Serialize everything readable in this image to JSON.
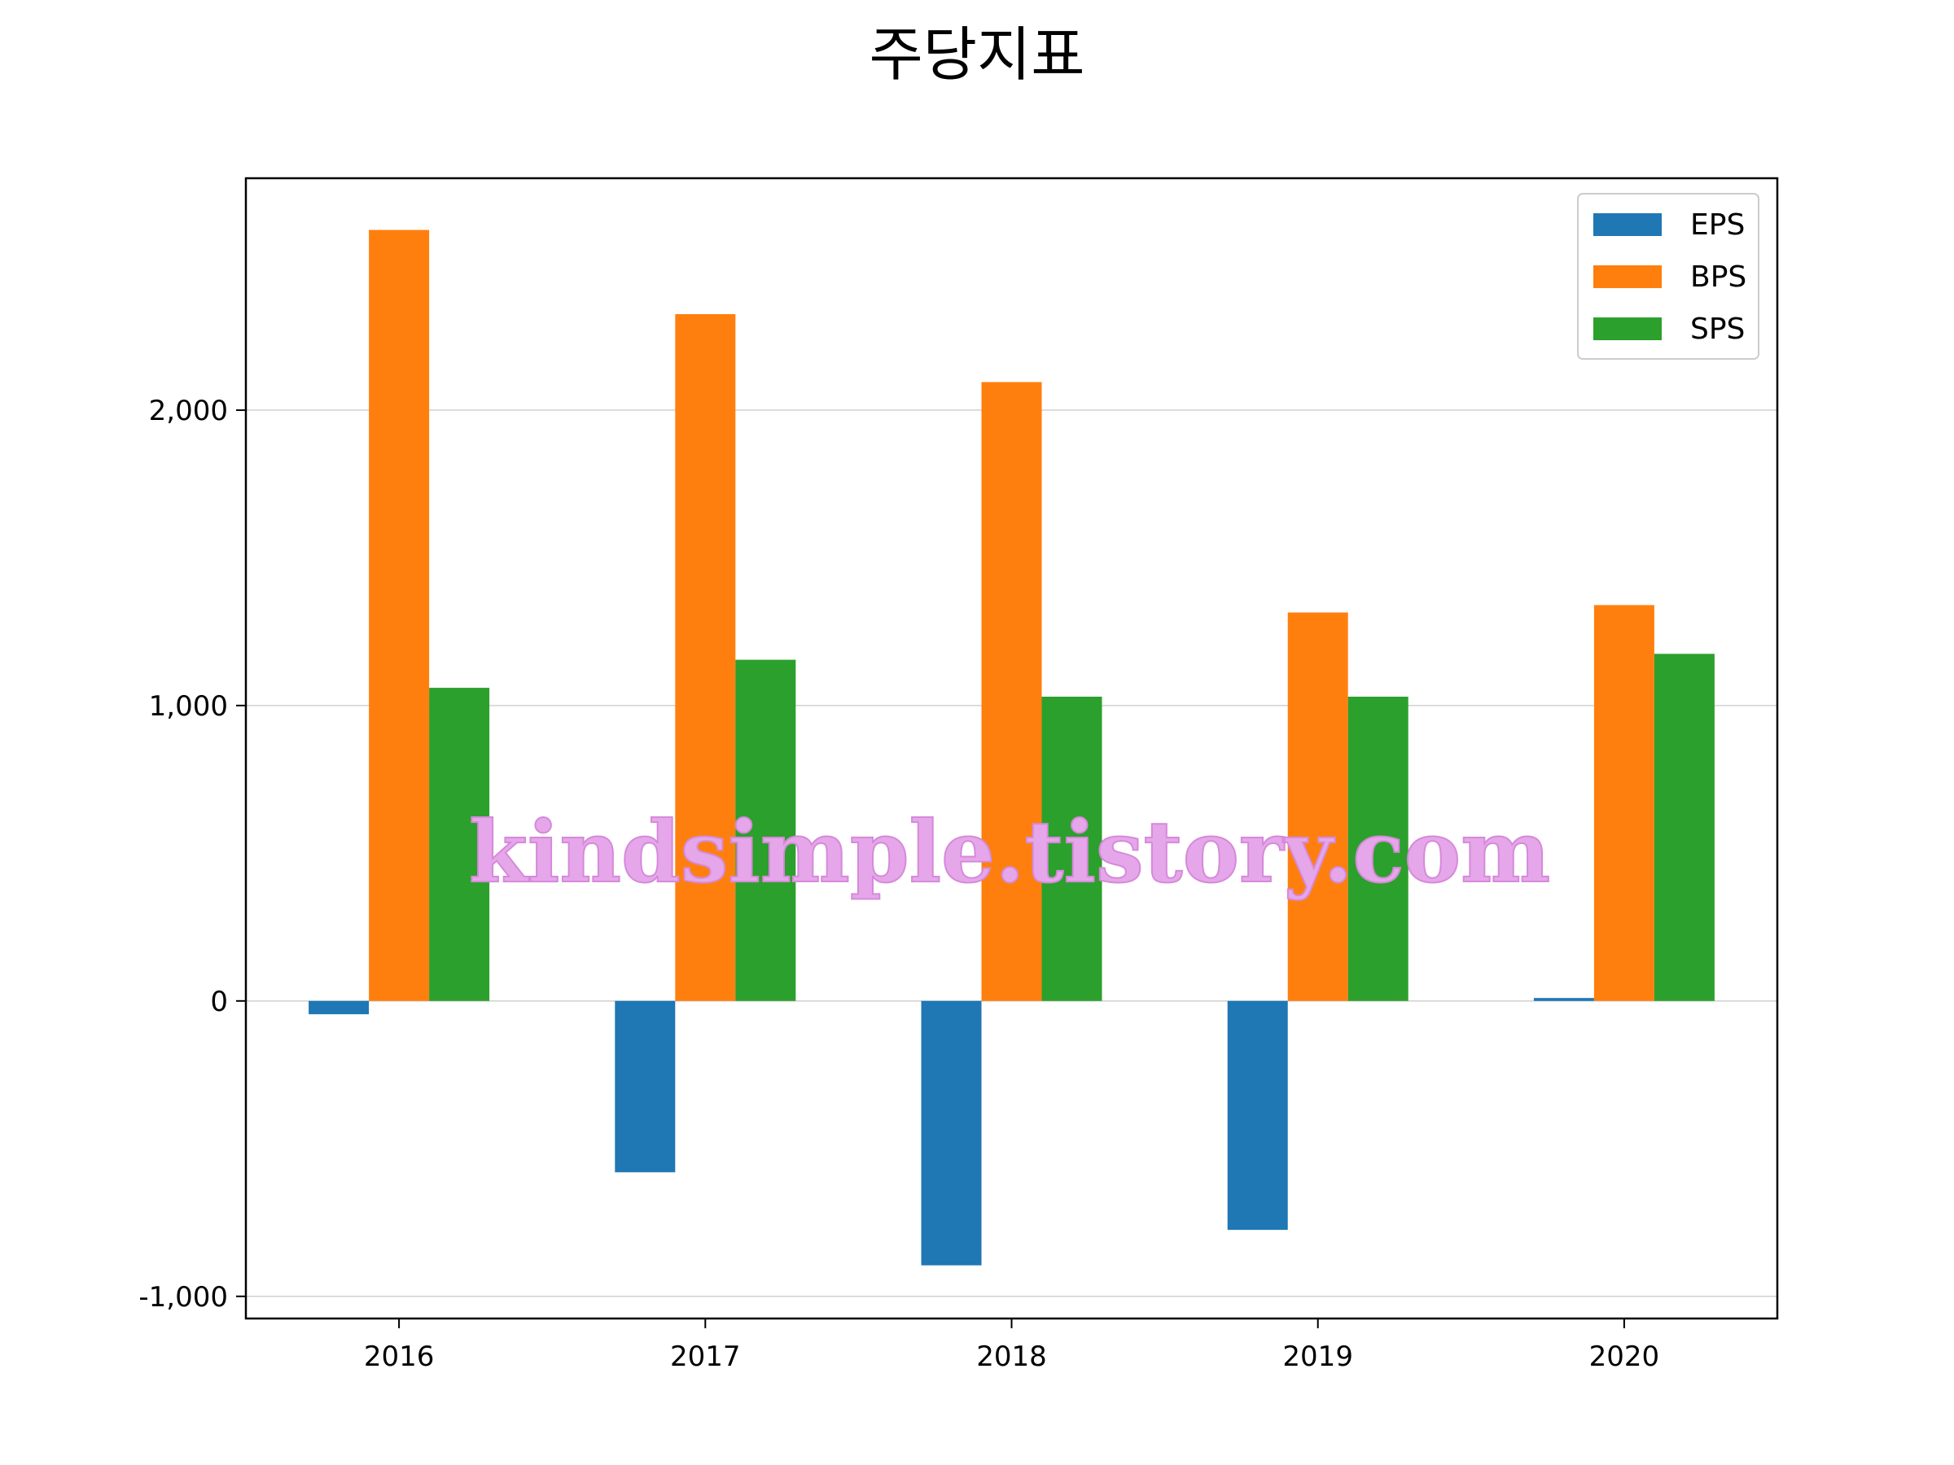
{
  "chart_data": {
    "type": "bar",
    "title": "주당지표",
    "categories": [
      "2016",
      "2017",
      "2018",
      "2019",
      "2020"
    ],
    "series": [
      {
        "name": "EPS",
        "color": "#1f77b4",
        "values": [
          -45,
          -580,
          -895,
          -775,
          10
        ]
      },
      {
        "name": "BPS",
        "color": "#ff7f0e",
        "values": [
          2610,
          2325,
          2095,
          1315,
          1340
        ]
      },
      {
        "name": "SPS",
        "color": "#2ca02c",
        "values": [
          1060,
          1155,
          1030,
          1030,
          1175
        ]
      }
    ],
    "ylim": [
      -1075,
      2785
    ],
    "yticks": [
      -1000,
      0,
      1000,
      2000
    ],
    "ytick_labels": [
      "-1,000",
      "0",
      "1,000",
      "2,000"
    ],
    "grid": "horizontal",
    "legend": "top-right",
    "xlabel": "",
    "ylabel": ""
  },
  "watermark": "kindsimple.tistory.com"
}
